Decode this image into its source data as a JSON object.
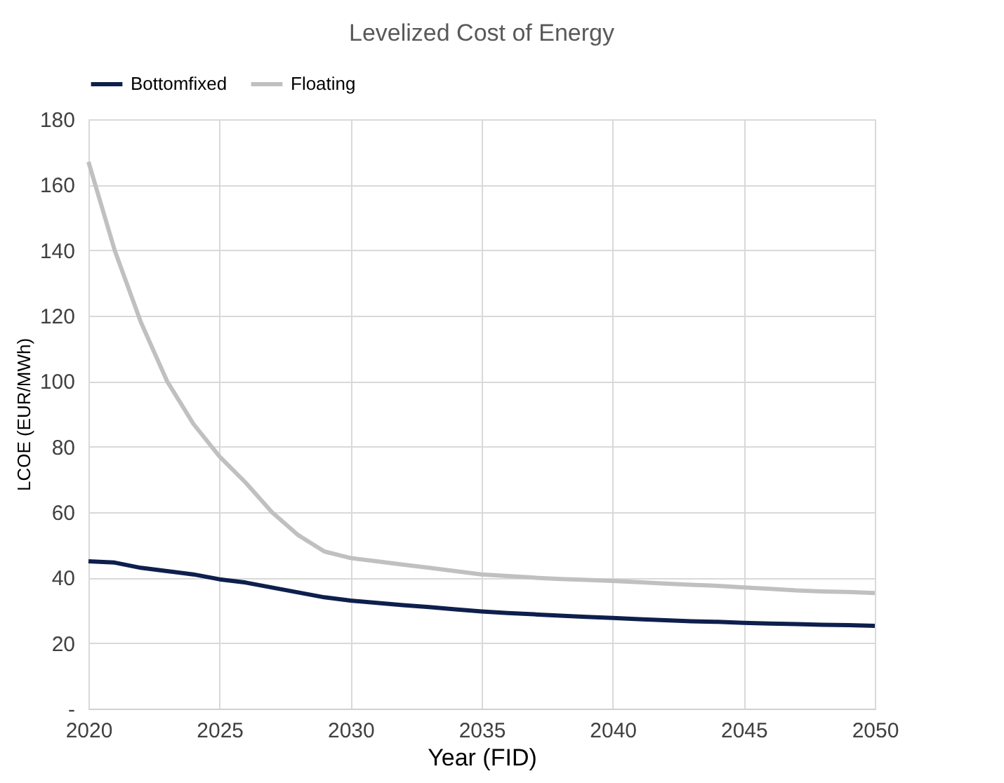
{
  "chart_data": {
    "type": "line",
    "title": "Levelized Cost of Energy",
    "xlabel": "Year (FID)",
    "ylabel": "LCOE (EUR/MWh)",
    "x": [
      2020,
      2021,
      2022,
      2023,
      2024,
      2025,
      2026,
      2027,
      2028,
      2029,
      2030,
      2031,
      2032,
      2033,
      2034,
      2035,
      2036,
      2037,
      2038,
      2039,
      2040,
      2041,
      2042,
      2043,
      2044,
      2045,
      2046,
      2047,
      2048,
      2049,
      2050
    ],
    "series": [
      {
        "name": "Bottomfixed",
        "color": "#0e1f4d",
        "values": [
          45,
          44.6,
          43,
          42,
          41,
          39.5,
          38.5,
          37,
          35.5,
          34,
          33,
          32.3,
          31.6,
          31,
          30.3,
          29.7,
          29.2,
          28.8,
          28.4,
          28,
          27.7,
          27.3,
          27,
          26.7,
          26.5,
          26.2,
          26,
          25.8,
          25.6,
          25.5,
          25.3
        ]
      },
      {
        "name": "Floating",
        "color": "#c0c0c0",
        "values": [
          167,
          140,
          118,
          100,
          87,
          77,
          69,
          60,
          53,
          48,
          46,
          45,
          44,
          43,
          42,
          41,
          40.5,
          40,
          39.6,
          39.3,
          39,
          38.6,
          38.2,
          37.8,
          37.5,
          37,
          36.6,
          36.1,
          35.8,
          35.6,
          35.3
        ]
      }
    ],
    "xlim": [
      2020,
      2050
    ],
    "xticks": [
      2020,
      2025,
      2030,
      2035,
      2040,
      2045,
      2050
    ],
    "ylim": [
      0,
      180
    ],
    "yticks": [
      {
        "value": 0,
        "label": "-"
      },
      20,
      40,
      60,
      80,
      100,
      120,
      140,
      160,
      180
    ],
    "grid": true,
    "legend": "top",
    "line_style": "solid",
    "marker": "none"
  }
}
